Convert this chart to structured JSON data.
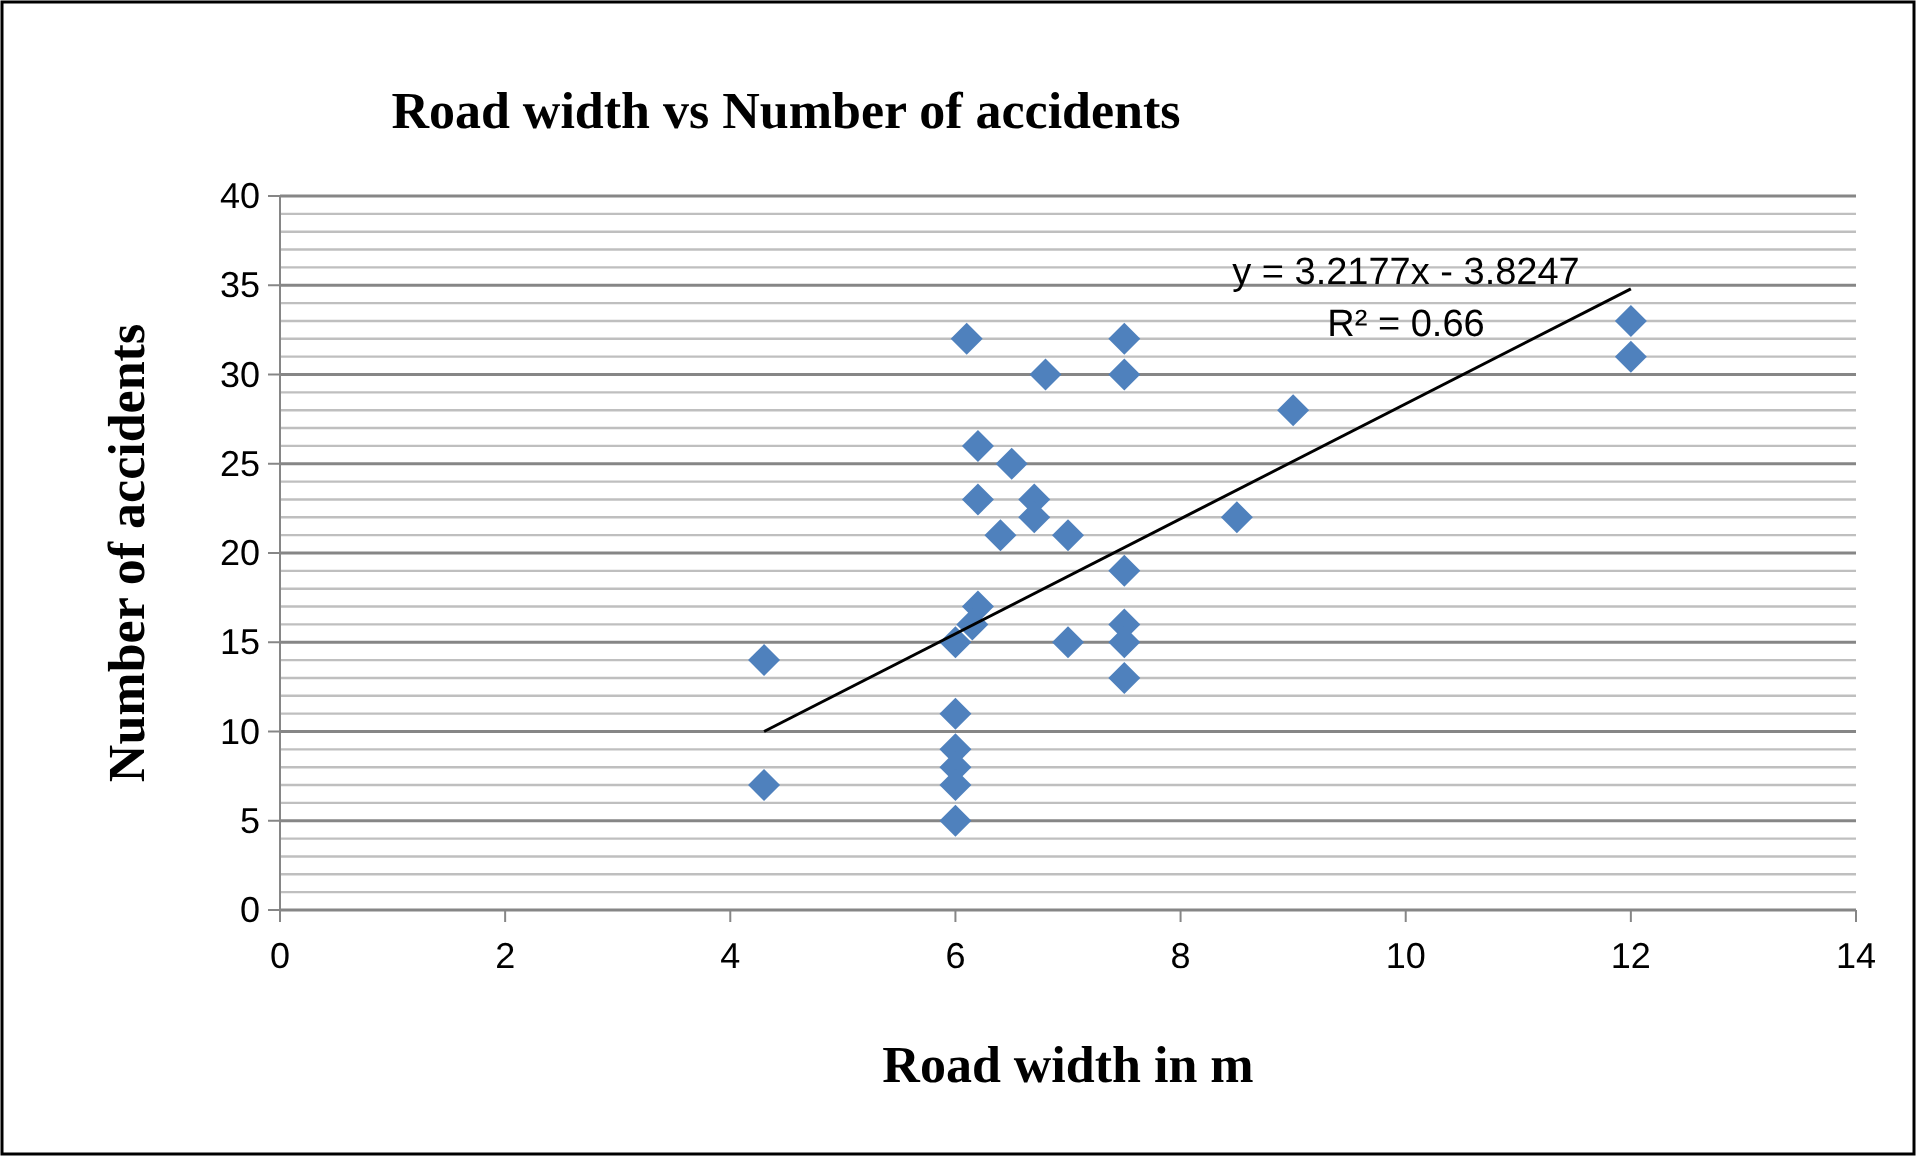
{
  "chart_data": {
    "type": "scatter",
    "title": "Road width  vs Number of accidents",
    "xlabel": "Road width in m",
    "ylabel": "Number of accidents",
    "xlim": [
      0,
      14
    ],
    "xticks": [
      0,
      2,
      4,
      6,
      8,
      10,
      12,
      14
    ],
    "ylim": [
      0,
      40
    ],
    "yticks": [
      0,
      {
        "value": 1,
        "label": null
      },
      {
        "value": 2,
        "label": null
      },
      {
        "value": 3,
        "label": null
      },
      {
        "value": 4,
        "label": null
      },
      5,
      {
        "value": 6,
        "label": null
      },
      {
        "value": 7,
        "label": null
      },
      {
        "value": 8,
        "label": null
      },
      {
        "value": 9,
        "label": null
      },
      10,
      {
        "value": 11,
        "label": null
      },
      {
        "value": 12,
        "label": null
      },
      {
        "value": 13,
        "label": null
      },
      {
        "value": 14,
        "label": null
      },
      15,
      {
        "value": 16,
        "label": null
      },
      {
        "value": 17,
        "label": null
      },
      {
        "value": 18,
        "label": null
      },
      {
        "value": 19,
        "label": null
      },
      20,
      {
        "value": 21,
        "label": null
      },
      {
        "value": 22,
        "label": null
      },
      {
        "value": 23,
        "label": null
      },
      {
        "value": 24,
        "label": null
      },
      25,
      {
        "value": 26,
        "label": null
      },
      {
        "value": 27,
        "label": null
      },
      {
        "value": 28,
        "label": null
      },
      {
        "value": 29,
        "label": null
      },
      30,
      {
        "value": 31,
        "label": null
      },
      {
        "value": 32,
        "label": null
      },
      {
        "value": 33,
        "label": null
      },
      {
        "value": 34,
        "label": null
      },
      35,
      {
        "value": 36,
        "label": null
      },
      {
        "value": 37,
        "label": null
      },
      {
        "value": 38,
        "label": null
      },
      {
        "value": 39,
        "label": null
      },
      40
    ],
    "grid": "y",
    "marker": "diamond",
    "series": [
      {
        "color": "#4f81bd",
        "x": [
          4.3,
          4.3,
          6.1,
          6.2,
          6.5,
          6.2,
          6.7,
          6.7,
          6.4,
          7.0,
          6.8,
          7.5,
          7.5,
          6.2,
          6.15,
          6.0,
          7.0,
          7.5,
          7.5,
          7.5,
          7.5,
          6.0,
          6.0,
          6.0,
          6.0,
          6.0,
          8.5,
          9,
          12,
          12
        ],
        "values": [
          14,
          7,
          32,
          26,
          25,
          23,
          23,
          22,
          21,
          21,
          30,
          32,
          30,
          17,
          16,
          15,
          15,
          19,
          16,
          15,
          13,
          11,
          9,
          8,
          7,
          5,
          22,
          28,
          33,
          31
        ]
      },
      {
        "type": "line",
        "marker": "none",
        "color": "#000000",
        "x": [
          4.3,
          12
        ],
        "values": [
          10.0,
          34.8
        ]
      }
    ],
    "annotations": [
      "y = 3.2177x - 3.8247",
      "R² = 0.66"
    ]
  }
}
